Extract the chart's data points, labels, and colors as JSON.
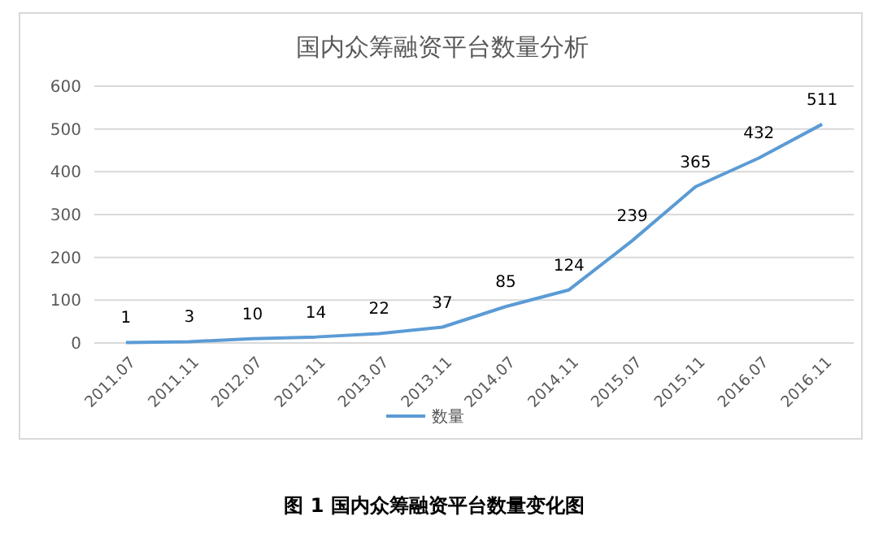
{
  "chart_data": {
    "type": "line",
    "title": "国内众筹融资平台数量分析",
    "categories": [
      "2011.07",
      "2011.11",
      "2012.07",
      "2012.11",
      "2013.07",
      "2013.11",
      "2014.07",
      "2014.11",
      "2015.07",
      "2015.11",
      "2016.07",
      "2016.11"
    ],
    "series": [
      {
        "name": "数量",
        "color": "#5b9bd5",
        "values": [
          1,
          3,
          10,
          14,
          22,
          37,
          85,
          124,
          239,
          365,
          432,
          511
        ]
      }
    ],
    "ylim": [
      0,
      600
    ],
    "yticks": [
      0,
      100,
      200,
      300,
      400,
      500,
      600
    ],
    "grid": "y",
    "legend": "bottom",
    "data_labels": true,
    "marker": "none",
    "line_style": "solid",
    "annotations": [
      "图 1 国内众筹融资平台数量变化图"
    ]
  }
}
